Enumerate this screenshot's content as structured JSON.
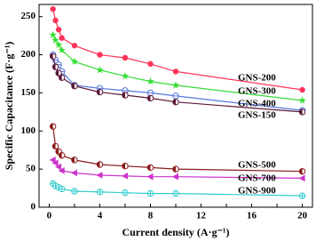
{
  "chart_data": {
    "type": "line",
    "x_label": "Current density (A·g⁻¹)",
    "y_label": "Specific Capacitance (F·g⁻¹)",
    "x": [
      0.3,
      0.5,
      0.75,
      1,
      2,
      4,
      6,
      8,
      10,
      20
    ],
    "xlim": [
      -0.8,
      20.8
    ],
    "xticks": [
      0,
      2,
      4,
      6,
      8,
      10,
      12,
      14,
      16,
      18,
      20
    ],
    "ylim": [
      0,
      266
    ],
    "yticks": [
      0,
      50,
      100,
      150,
      200,
      250
    ],
    "series": [
      {
        "name": "GNS-200",
        "color": "#ff3358",
        "marker": "circle",
        "values": [
          260,
          245,
          233,
          222,
          212,
          200,
          196,
          188,
          178,
          154
        ]
      },
      {
        "name": "GNS-300",
        "color": "#33dd33",
        "marker": "star",
        "values": [
          226,
          219,
          213,
          206,
          191,
          180,
          172,
          165,
          160,
          140
        ]
      },
      {
        "name": "GNS-400",
        "color": "#5577dd",
        "marker": "circle-cross",
        "values": [
          200,
          193,
          187,
          178,
          160,
          156,
          153,
          150,
          146,
          127
        ]
      },
      {
        "name": "GNS-150",
        "color": "#5c1838",
        "marker": "half-circle",
        "values": [
          198,
          184,
          176,
          170,
          159,
          151,
          147,
          143,
          138,
          125
        ]
      },
      {
        "name": "GNS-500",
        "color": "#8b1a1a",
        "marker": "half-circle",
        "values": [
          106,
          80,
          73,
          68,
          62,
          56,
          54,
          52,
          50,
          47
        ]
      },
      {
        "name": "GNS-700",
        "color": "#cc33cc",
        "marker": "triangle-left",
        "values": [
          62,
          58,
          53,
          48,
          45,
          42,
          41,
          40,
          40,
          38
        ]
      },
      {
        "name": "GNS-900",
        "color": "#33cccc",
        "marker": "circle-plus",
        "values": [
          31,
          28,
          26,
          24,
          21,
          20,
          19,
          18,
          18,
          15
        ]
      }
    ]
  }
}
